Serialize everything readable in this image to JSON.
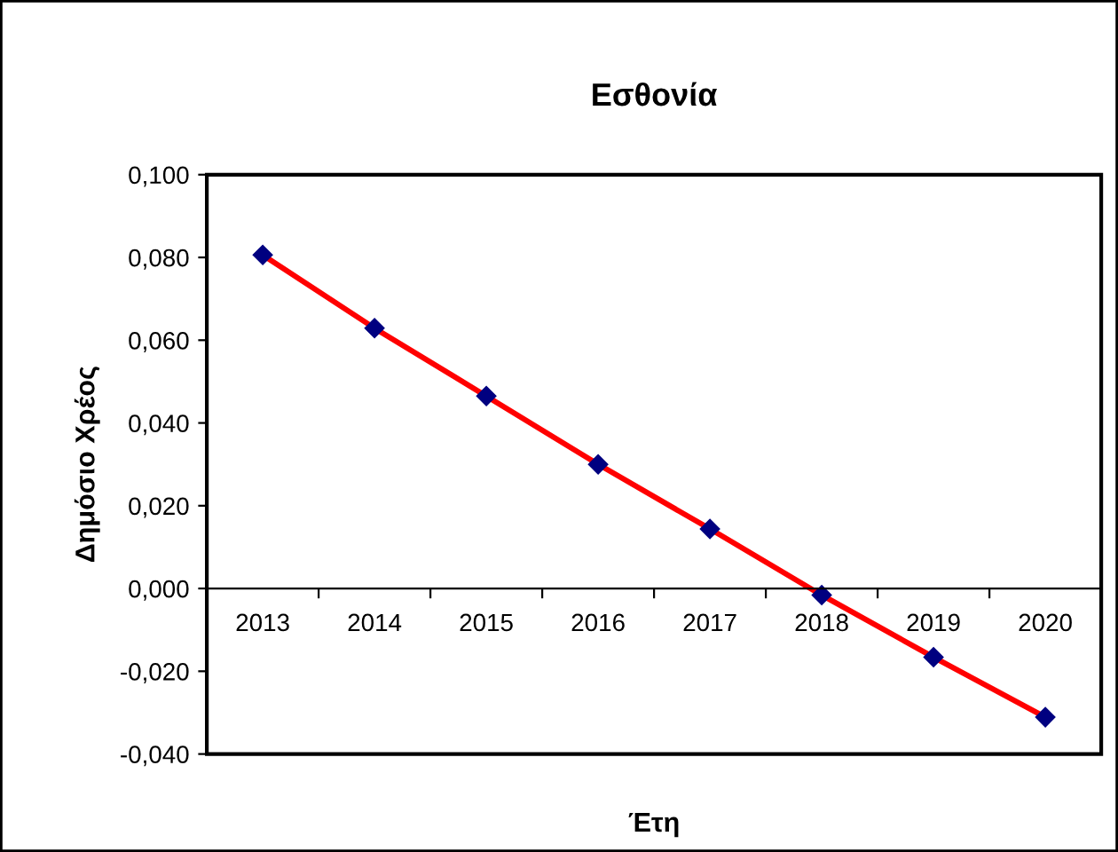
{
  "chart_data": {
    "type": "line",
    "title": "Εσθονία",
    "xlabel": "Έτη",
    "ylabel": "Δημόσιο Χρέος",
    "categories": [
      "2013",
      "2014",
      "2015",
      "2016",
      "2017",
      "2018",
      "2019",
      "2020"
    ],
    "series": [
      {
        "color": "#ff0000",
        "values": [
          0.0806,
          0.0629,
          0.0465,
          0.03,
          0.0144,
          -0.0016,
          -0.0166,
          -0.0311
        ]
      }
    ],
    "marker": "diamond",
    "line_style": "solid",
    "ylim": [
      -0.04,
      0.1
    ],
    "yticks": [
      {
        "value": -0.04,
        "label": "-0,040"
      },
      {
        "value": -0.02,
        "label": "-0,020"
      },
      {
        "value": 0,
        "label": "0,000"
      },
      {
        "value": 0.02,
        "label": "0,020"
      },
      {
        "value": 0.04,
        "label": "0,040"
      },
      {
        "value": 0.06,
        "label": "0,060"
      },
      {
        "value": 0.08,
        "label": "0,080"
      },
      {
        "value": 0.1,
        "label": "0,100"
      }
    ],
    "grid": false
  }
}
